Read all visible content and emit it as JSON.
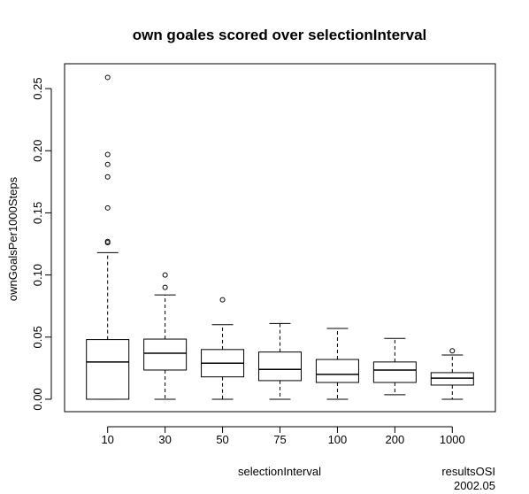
{
  "chart_data": {
    "type": "box",
    "title": "own goales scored over selectionInterval",
    "x_label": "selectionInterval",
    "y_label": "ownGoalsPer1000Steps",
    "annotations": [
      "resultsOSI",
      "2002.05"
    ],
    "categories": [
      "10",
      "30",
      "50",
      "75",
      "100",
      "200",
      "1000"
    ],
    "boxes": [
      {
        "whislo": 0,
        "q1": 0,
        "med": 0.03,
        "q3": 0.048,
        "whishi": 0.118,
        "fliers": [
          0.259,
          0.197,
          0.189,
          0.179,
          0.154,
          0.127,
          0.126
        ]
      },
      {
        "whislo": 0,
        "q1": 0.0235,
        "med": 0.037,
        "q3": 0.0484,
        "whishi": 0.084,
        "fliers": [
          0.1,
          0.09
        ]
      },
      {
        "whislo": 0,
        "q1": 0.018,
        "med": 0.029,
        "q3": 0.04,
        "whishi": 0.06,
        "fliers": [
          0.08
        ]
      },
      {
        "whislo": 0,
        "q1": 0.015,
        "med": 0.024,
        "q3": 0.038,
        "whishi": 0.061,
        "fliers": []
      },
      {
        "whislo": 0,
        "q1": 0.0135,
        "med": 0.02,
        "q3": 0.032,
        "whishi": 0.057,
        "fliers": []
      },
      {
        "whislo": 0.0036,
        "q1": 0.0135,
        "med": 0.0235,
        "q3": 0.03,
        "whishi": 0.049,
        "fliers": []
      },
      {
        "whislo": 0,
        "q1": 0.0114,
        "med": 0.017,
        "q3": 0.0214,
        "whishi": 0.0356,
        "fliers": [
          0.039
        ]
      }
    ],
    "color": "#000000",
    "ylim": [
      -0.01,
      0.27
    ],
    "yticks": [
      {
        "value": 0,
        "label": "0.00"
      },
      0.05,
      {
        "value": 0.1,
        "label": "0.10"
      },
      0.15,
      {
        "value": 0.2,
        "label": "0.20"
      },
      0.25
    ]
  }
}
